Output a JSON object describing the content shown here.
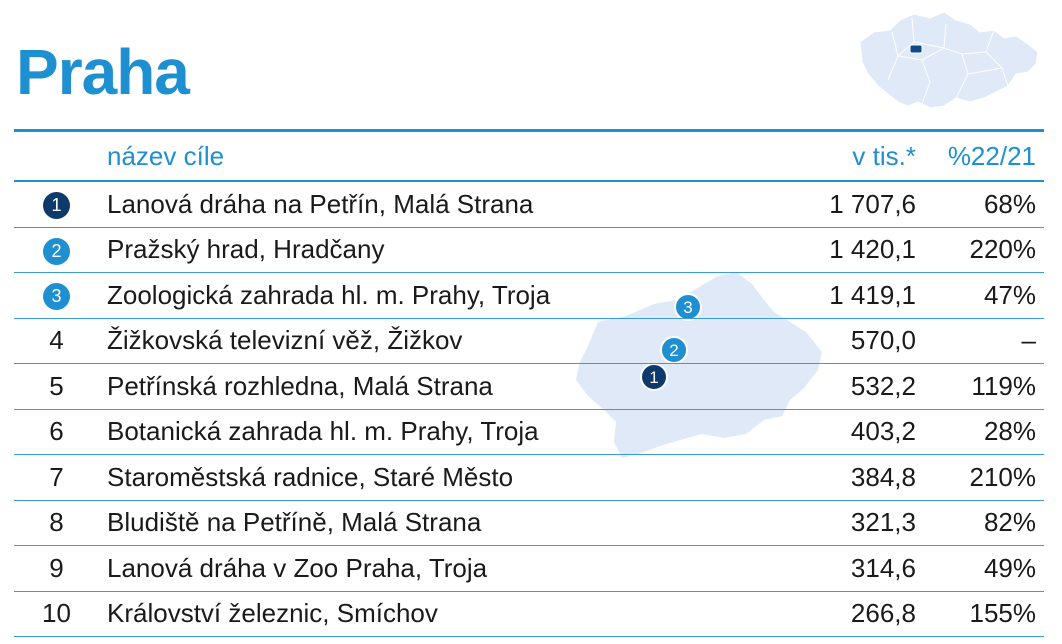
{
  "title": "Praha",
  "colors": {
    "accent": "#1e8fd0",
    "dark_badge": "#0d3a6b",
    "map_fill": "#dfe9f7"
  },
  "chart_data": {
    "type": "table",
    "columns": [
      "",
      "název cíle",
      "v tis.*",
      "%22/21"
    ],
    "rows": [
      {
        "rank": "1",
        "name": "Lanová dráha na Petřín, Malá Strana",
        "visitors": "1 707,6",
        "change": "68%",
        "badge": "dark"
      },
      {
        "rank": "2",
        "name": "Pražský hrad, Hradčany",
        "visitors": "1 420,1",
        "change": "220%",
        "badge": "light"
      },
      {
        "rank": "3",
        "name": "Zoologická zahrada hl. m. Prahy, Troja",
        "visitors": "1 419,1",
        "change": "47%",
        "badge": "light"
      },
      {
        "rank": "4",
        "name": "Žižkovská televizní věž, Žižkov",
        "visitors": "570,0",
        "change": "–",
        "badge": ""
      },
      {
        "rank": "5",
        "name": "Petřínská rozhledna, Malá Strana",
        "visitors": "532,2",
        "change": "119%",
        "badge": ""
      },
      {
        "rank": "6",
        "name": "Botanická zahrada hl. m. Prahy, Troja",
        "visitors": "403,2",
        "change": "28%",
        "badge": ""
      },
      {
        "rank": "7",
        "name": "Staroměstská radnice, Staré Město",
        "visitors": "384,8",
        "change": "210%",
        "badge": ""
      },
      {
        "rank": "8",
        "name": "Bludiště na Petříně, Malá Strana",
        "visitors": "321,3",
        "change": "82%",
        "badge": ""
      },
      {
        "rank": "9",
        "name": "Lanová dráha v Zoo Praha, Troja",
        "visitors": "314,6",
        "change": "49%",
        "badge": ""
      },
      {
        "rank": "10",
        "name": "Království železnic, Smíchov",
        "visitors": "266,8",
        "change": "155%",
        "badge": ""
      }
    ]
  },
  "map": {
    "markers": [
      "3",
      "2",
      "1"
    ]
  }
}
